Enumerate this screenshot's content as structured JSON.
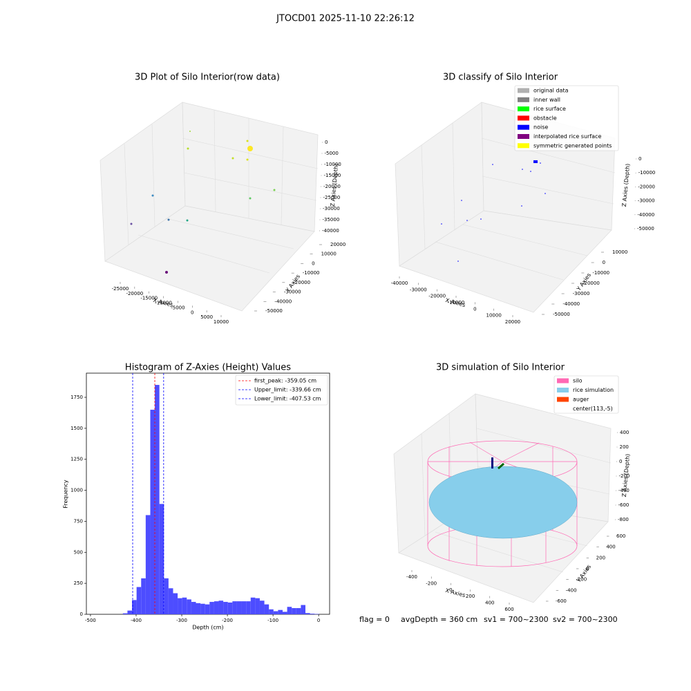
{
  "suptitle": "JTOCD01 2025-11-10 22:26:12",
  "status": [
    "flag = 0",
    "avgDepth = 360 cm",
    "sv1 = 700~2300",
    "sv2 = 700~2300"
  ],
  "chart_data": [
    {
      "type": "scatter3d",
      "title": "3D Plot of Silo Interior(row data)",
      "xlabel": "X Axies",
      "ylabel": "Y Axies",
      "zlabel": "Z Axies (Depth)",
      "xticks": [
        -25000,
        -20000,
        -15000,
        -10000,
        -5000,
        0,
        5000,
        10000
      ],
      "yticks": [
        20000,
        10000,
        0,
        -10000,
        -20000,
        -30000,
        -40000,
        -50000
      ],
      "zticks": [
        0,
        -5000,
        -10000,
        -15000,
        -20000,
        -25000,
        -30000,
        -35000,
        -40000
      ]
    },
    {
      "type": "scatter3d",
      "title": "3D classify of Silo Interior",
      "xlabel": "X Axies",
      "ylabel": "Y Axies",
      "zlabel": "Z Axies (Depth)",
      "xticks": [
        -40000,
        -30000,
        -20000,
        -10000,
        0,
        10000,
        20000
      ],
      "yticks": [
        10000,
        0,
        -10000,
        -20000,
        -30000,
        -40000,
        -50000
      ],
      "zticks": [
        0,
        -10000,
        -20000,
        -30000,
        -40000,
        -50000
      ],
      "legend": [
        {
          "name": "original data",
          "color": "#b0b0b0"
        },
        {
          "name": "inner wall",
          "color": "#808080"
        },
        {
          "name": "rice surface",
          "color": "#00ff00"
        },
        {
          "name": "obstacle",
          "color": "#ff0000"
        },
        {
          "name": "noise",
          "color": "#0000ff"
        },
        {
          "name": "interpolated rice surface",
          "color": "#800080"
        },
        {
          "name": "symmetric generated points",
          "color": "#ffff00"
        }
      ]
    },
    {
      "type": "histogram",
      "title": "Histogram of Z-Axies (Height) Values",
      "xlabel": "Depth (cm)",
      "ylabel": "Frequency",
      "color": "#4d4dff",
      "bins": [
        -429,
        -419,
        -409,
        -399,
        -389,
        -379,
        -369,
        -359,
        -349,
        -339,
        -329,
        -319,
        -309,
        -299,
        -289,
        -279,
        -269,
        -259,
        -249,
        -239,
        -229,
        -219,
        -209,
        -199,
        -189,
        -179,
        -169,
        -159,
        -149,
        -139,
        -129,
        -119,
        -109,
        -99,
        -89,
        -79,
        -69,
        -59,
        -49,
        -39,
        -29,
        -19,
        -9,
        1
      ],
      "counts": [
        8,
        30,
        115,
        220,
        290,
        800,
        1650,
        1850,
        890,
        290,
        210,
        170,
        130,
        135,
        120,
        100,
        90,
        85,
        80,
        100,
        105,
        110,
        100,
        95,
        105,
        105,
        105,
        105,
        135,
        130,
        110,
        80,
        40,
        25,
        35,
        20,
        60,
        50,
        50,
        75,
        10,
        5,
        3
      ],
      "xlim": [
        -509,
        24
      ],
      "ylim": [
        0,
        1945
      ],
      "xticks": [
        -500,
        -400,
        -300,
        -200,
        -100,
        0
      ],
      "yticks": [
        0,
        250,
        500,
        750,
        1000,
        1250,
        1500,
        1750
      ],
      "vlines": [
        {
          "value": -359.05,
          "label": "first_peak: -359.05 cm",
          "color": "#ff0000"
        },
        {
          "value": -339.66,
          "label": "Upper_limit: -339.66 cm",
          "color": "#0000ff"
        },
        {
          "value": -407.53,
          "label": "Lower_limit: -407.53 cm",
          "color": "#0000ff"
        }
      ]
    },
    {
      "type": "scatter3d",
      "title": "3D simulation of Silo Interior",
      "xlabel": "X Axies",
      "ylabel": "Y Axies",
      "zlabel": "Z Axies (Depth)",
      "xticks": [
        -400,
        -200,
        0,
        200,
        400,
        600
      ],
      "yticks": [
        600,
        400,
        200,
        0,
        -200,
        -400,
        -600
      ],
      "zticks": [
        400,
        200,
        0,
        -200,
        -400,
        -600,
        -800
      ],
      "legend": [
        {
          "name": "silo",
          "color": "#ff69b4"
        },
        {
          "name": "rice simulation",
          "color": "#87ceeb"
        },
        {
          "name": "auger",
          "color": "#ff4500"
        },
        {
          "name": "center(113,-5)",
          "color": "#ffffff"
        }
      ]
    }
  ]
}
